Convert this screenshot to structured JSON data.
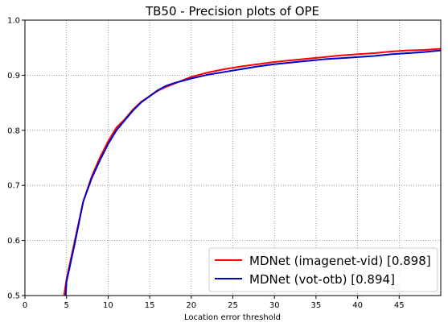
{
  "chart_data": {
    "type": "line",
    "title": "TB50 - Precision plots of OPE",
    "xlabel": "Location error threshold",
    "ylabel": "",
    "xlim": [
      0,
      50
    ],
    "ylim": [
      0.5,
      1.0
    ],
    "grid": true,
    "legend_position": "bottom-right",
    "x_ticks": [
      "0",
      "5",
      "10",
      "15",
      "20",
      "25",
      "30",
      "35",
      "40",
      "45"
    ],
    "y_ticks": [
      "0.5",
      "0.6",
      "0.7",
      "0.8",
      "0.9",
      "1.0"
    ],
    "series": [
      {
        "name": "MDNet (imagenet-vid) [0.898]",
        "color": "#ff0000",
        "x": [
          4.7,
          5,
          6,
          7,
          8,
          9,
          10,
          11,
          12,
          13,
          14,
          15,
          16,
          17,
          18,
          19,
          20,
          22,
          24,
          26,
          28,
          30,
          32,
          34,
          36,
          38,
          40,
          42,
          44,
          46,
          48,
          50
        ],
        "y": [
          0.5,
          0.53,
          0.6,
          0.67,
          0.715,
          0.75,
          0.78,
          0.805,
          0.82,
          0.838,
          0.852,
          0.862,
          0.872,
          0.879,
          0.885,
          0.891,
          0.897,
          0.905,
          0.911,
          0.916,
          0.92,
          0.924,
          0.927,
          0.93,
          0.933,
          0.936,
          0.938,
          0.94,
          0.943,
          0.945,
          0.946,
          0.948
        ]
      },
      {
        "name": "MDNet (vot-otb) [0.894]",
        "color": "#0000cc",
        "x": [
          4.9,
          5,
          6,
          7,
          8,
          9,
          10,
          11,
          12,
          13,
          14,
          15,
          16,
          17,
          18,
          19,
          20,
          22,
          24,
          26,
          28,
          30,
          32,
          34,
          36,
          38,
          40,
          42,
          44,
          46,
          48,
          50
        ],
        "y": [
          0.5,
          0.525,
          0.595,
          0.67,
          0.712,
          0.745,
          0.775,
          0.8,
          0.818,
          0.836,
          0.851,
          0.862,
          0.873,
          0.881,
          0.886,
          0.89,
          0.894,
          0.901,
          0.906,
          0.911,
          0.916,
          0.92,
          0.923,
          0.926,
          0.929,
          0.931,
          0.933,
          0.935,
          0.938,
          0.94,
          0.942,
          0.945
        ]
      }
    ]
  }
}
